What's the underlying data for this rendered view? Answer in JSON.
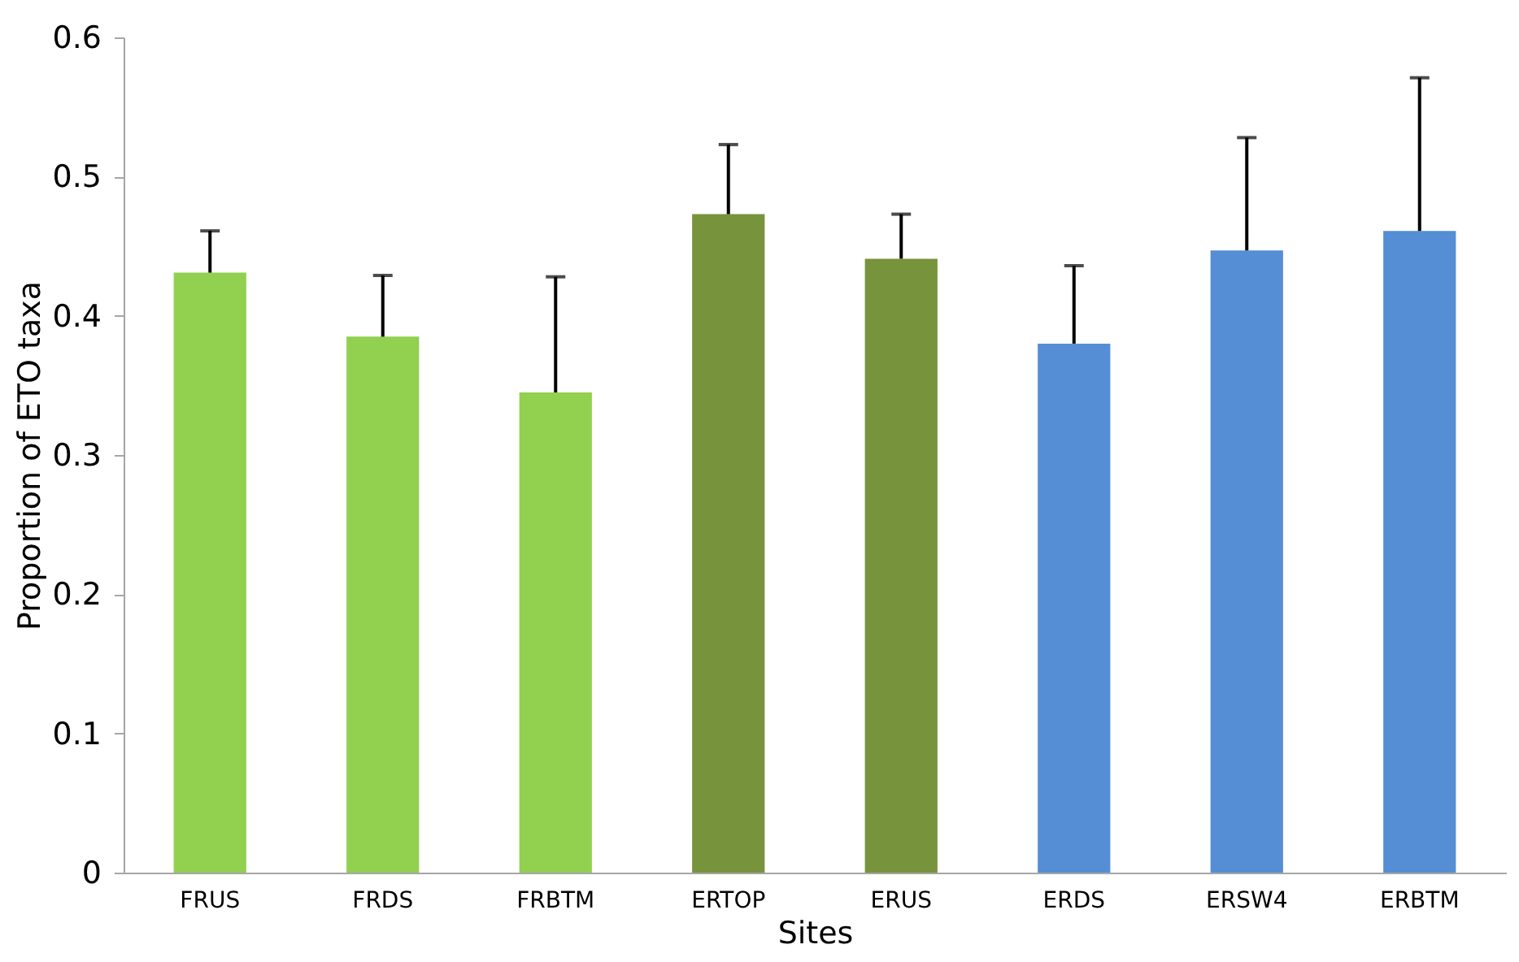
{
  "chart_data": {
    "type": "bar",
    "xlabel": "Sites",
    "ylabel": "Proportion of ETO taxa",
    "categories": [
      "FRUS",
      "FRDS",
      "FRBTM",
      "ERTOP",
      "ERUS",
      "ERDS",
      "ERSW4",
      "ERBTM"
    ],
    "values": [
      0.431,
      0.385,
      0.345,
      0.473,
      0.441,
      0.38,
      0.447,
      0.461
    ],
    "errors": [
      [
        0.431,
        0.461
      ],
      [
        0.385,
        0.429
      ],
      [
        0.345,
        0.428
      ],
      [
        0.473,
        0.523
      ],
      [
        0.441,
        0.473
      ],
      [
        0.38,
        0.436
      ],
      [
        0.447,
        0.528
      ],
      [
        0.461,
        0.571
      ]
    ],
    "colors": [
      "#92d050",
      "#92d050",
      "#92d050",
      "#77933c",
      "#77933c",
      "#558ed5",
      "#558ed5",
      "#558ed5"
    ],
    "ylim": [
      0,
      0.6
    ],
    "yticks": [
      0,
      0.1,
      0.2,
      0.3,
      0.4,
      0.5,
      0.6
    ],
    "grid": false
  }
}
